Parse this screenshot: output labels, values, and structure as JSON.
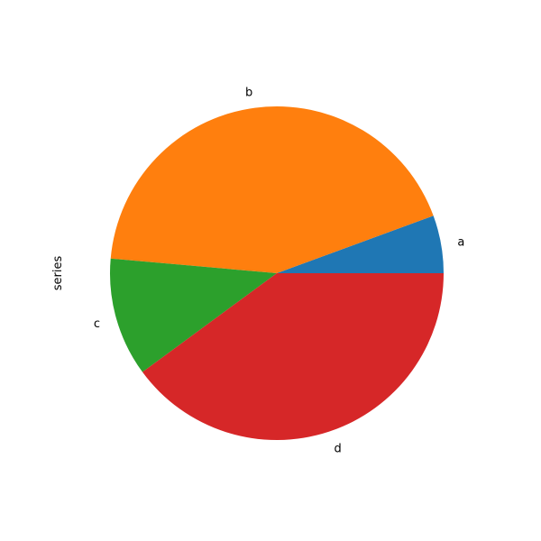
{
  "chart_data": {
    "type": "pie",
    "title": "",
    "ylabel": "series",
    "categories": [
      "a",
      "b",
      "c",
      "d"
    ],
    "values": [
      5.6,
      43.0,
      11.5,
      39.9
    ],
    "colors": [
      "#1f77b4",
      "#ff7f0e",
      "#2ca02c",
      "#d62728"
    ],
    "start_angle": 0,
    "direction": "counterclockwise"
  }
}
